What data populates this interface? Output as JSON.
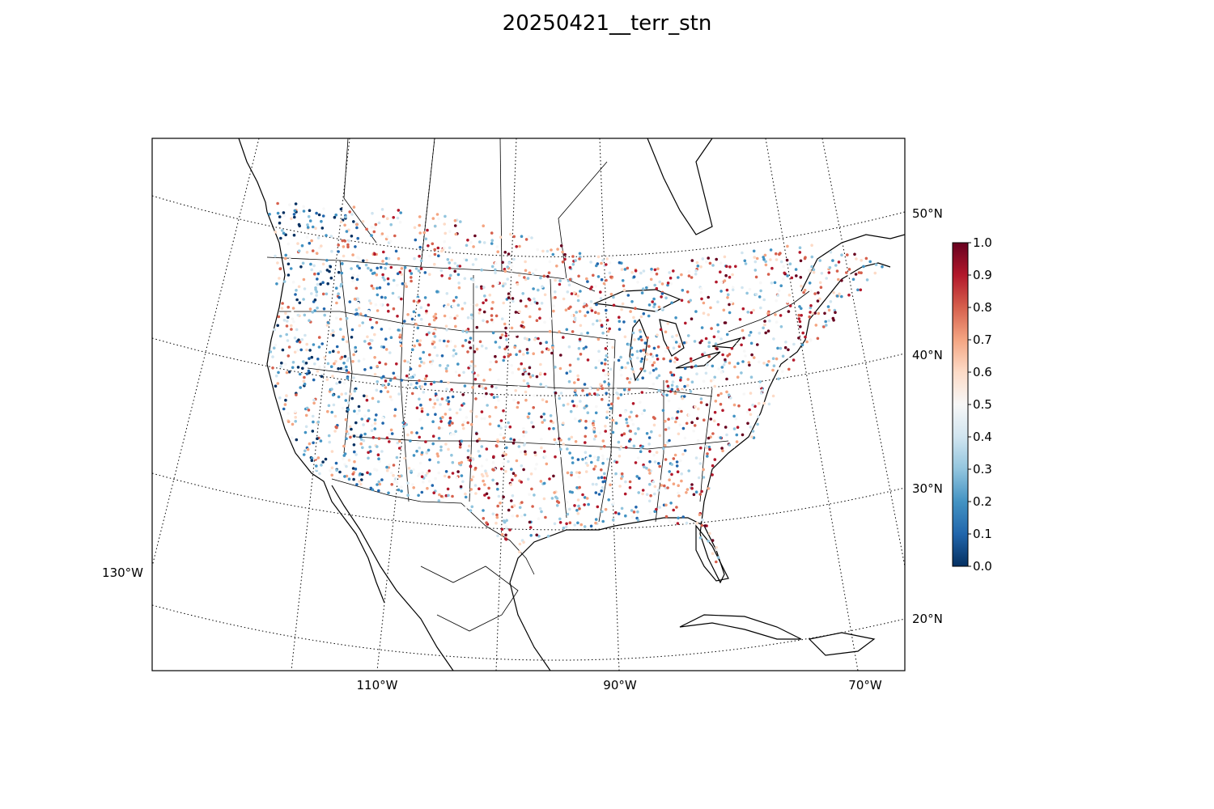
{
  "title": "20250421__terr_stn",
  "map": {
    "projection": "lambert-conformal",
    "lat_labels": [
      "50°N",
      "40°N",
      "30°N",
      "20°N"
    ],
    "lon_labels_bottom": [
      "110°W",
      "90°W",
      "70°W"
    ],
    "lon_label_left": "130°W"
  },
  "colorbar": {
    "colormap": "RdBu_r",
    "min": 0.0,
    "max": 1.0,
    "ticks": [
      "0.0",
      "0.1",
      "0.2",
      "0.3",
      "0.4",
      "0.5",
      "0.6",
      "0.7",
      "0.8",
      "0.9",
      "1.0"
    ],
    "colors": [
      "#053061",
      "#2166ac",
      "#4393c3",
      "#92c5de",
      "#d1e5f0",
      "#f7f7f7",
      "#fddbc7",
      "#f4a582",
      "#d6604d",
      "#b2182b",
      "#67001f"
    ]
  },
  "stations": {
    "value_range": [
      0,
      1
    ],
    "description_of_marks": "scatter of station points colored by value"
  }
}
